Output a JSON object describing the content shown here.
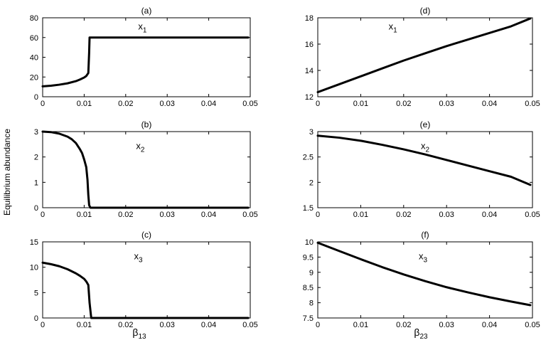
{
  "figure": {
    "ylabel": "Equilibrium abundance",
    "left_xlabel": {
      "main": "β",
      "sub": "13"
    },
    "right_xlabel": {
      "main": "β",
      "sub": "23"
    }
  },
  "chart_data": [
    {
      "type": "line",
      "title": "(a)",
      "annotation": {
        "main": "x",
        "sub": "1"
      },
      "xlim": [
        0,
        0.05
      ],
      "ylim": [
        0,
        80
      ],
      "xticks": [
        "0",
        "0.01",
        "0.02",
        "0.03",
        "0.04",
        "0.05"
      ],
      "yticks": [
        "0",
        "20",
        "40",
        "60",
        "80"
      ],
      "series": [
        {
          "x": [
            0,
            0.002,
            0.004,
            0.006,
            0.008,
            0.009,
            0.01,
            0.0105,
            0.011,
            0.0112,
            0.0113,
            0.015,
            0.02,
            0.03,
            0.04,
            0.0495
          ],
          "y": [
            10.5,
            11.2,
            12.2,
            13.6,
            15.8,
            17.5,
            19.5,
            21,
            24,
            45,
            60,
            60,
            60,
            60,
            60,
            60
          ]
        }
      ]
    },
    {
      "type": "line",
      "title": "(b)",
      "annotation": {
        "main": "x",
        "sub": "2"
      },
      "xlim": [
        0,
        0.05
      ],
      "ylim": [
        0,
        3
      ],
      "xticks": [
        "0",
        "0.01",
        "0.02",
        "0.03",
        "0.04",
        "0.05"
      ],
      "yticks": [
        "0",
        "1",
        "2",
        "3"
      ],
      "series": [
        {
          "x": [
            0,
            0.002,
            0.004,
            0.006,
            0.007,
            0.008,
            0.009,
            0.0095,
            0.01,
            0.0105,
            0.0108,
            0.011,
            0.0112,
            0.0115,
            0.015,
            0.02,
            0.03,
            0.04,
            0.0495
          ],
          "y": [
            3.0,
            2.98,
            2.92,
            2.8,
            2.7,
            2.55,
            2.3,
            2.15,
            1.9,
            1.6,
            1.1,
            0.5,
            0.1,
            0,
            0,
            0,
            0,
            0,
            0
          ]
        }
      ]
    },
    {
      "type": "line",
      "title": "(c)",
      "annotation": {
        "main": "x",
        "sub": "3"
      },
      "xlim": [
        0,
        0.05
      ],
      "ylim": [
        0,
        15
      ],
      "xticks": [
        "0",
        "0.01",
        "0.02",
        "0.03",
        "0.04",
        "0.05"
      ],
      "yticks": [
        "0",
        "5",
        "10",
        "15"
      ],
      "series": [
        {
          "x": [
            0,
            0.002,
            0.004,
            0.006,
            0.008,
            0.009,
            0.01,
            0.0105,
            0.011,
            0.0113,
            0.0117,
            0.015,
            0.02,
            0.03,
            0.04,
            0.0495
          ],
          "y": [
            10.9,
            10.6,
            10.2,
            9.6,
            8.8,
            8.3,
            7.7,
            7.2,
            6.5,
            3.0,
            0,
            0,
            0,
            0,
            0,
            0
          ]
        }
      ]
    },
    {
      "type": "line",
      "title": "(d)",
      "annotation": {
        "main": "x",
        "sub": "1"
      },
      "xlim": [
        0,
        0.05
      ],
      "ylim": [
        12,
        18
      ],
      "xticks": [
        "0",
        "0.01",
        "0.02",
        "0.03",
        "0.04",
        "0.05"
      ],
      "yticks": [
        "12",
        "14",
        "16",
        "18"
      ],
      "series": [
        {
          "x": [
            0,
            0.005,
            0.01,
            0.015,
            0.02,
            0.025,
            0.03,
            0.035,
            0.04,
            0.045,
            0.0495
          ],
          "y": [
            12.35,
            12.95,
            13.55,
            14.15,
            14.75,
            15.3,
            15.85,
            16.35,
            16.85,
            17.35,
            17.95
          ]
        }
      ]
    },
    {
      "type": "line",
      "title": "(e)",
      "annotation": {
        "main": "x",
        "sub": "2"
      },
      "xlim": [
        0,
        0.05
      ],
      "ylim": [
        1.5,
        3
      ],
      "xticks": [
        "0",
        "0.01",
        "0.02",
        "0.03",
        "0.04",
        "0.05"
      ],
      "yticks": [
        "1.5",
        "2",
        "2.5",
        "3"
      ],
      "series": [
        {
          "x": [
            0,
            0.005,
            0.01,
            0.015,
            0.02,
            0.025,
            0.03,
            0.035,
            0.04,
            0.045,
            0.0495
          ],
          "y": [
            2.92,
            2.88,
            2.82,
            2.74,
            2.65,
            2.55,
            2.44,
            2.33,
            2.22,
            2.11,
            1.95
          ]
        }
      ]
    },
    {
      "type": "line",
      "title": "(f)",
      "annotation": {
        "main": "x",
        "sub": "3"
      },
      "xlim": [
        0,
        0.05
      ],
      "ylim": [
        7.5,
        10
      ],
      "xticks": [
        "0",
        "0.01",
        "0.02",
        "0.03",
        "0.04",
        "0.05"
      ],
      "yticks": [
        "7.5",
        "8",
        "8.5",
        "9",
        "9.5",
        "10"
      ],
      "series": [
        {
          "x": [
            0,
            0.005,
            0.01,
            0.015,
            0.02,
            0.025,
            0.03,
            0.035,
            0.04,
            0.045,
            0.0495
          ],
          "y": [
            9.97,
            9.7,
            9.43,
            9.17,
            8.93,
            8.71,
            8.51,
            8.34,
            8.18,
            8.04,
            7.92
          ]
        }
      ]
    }
  ]
}
